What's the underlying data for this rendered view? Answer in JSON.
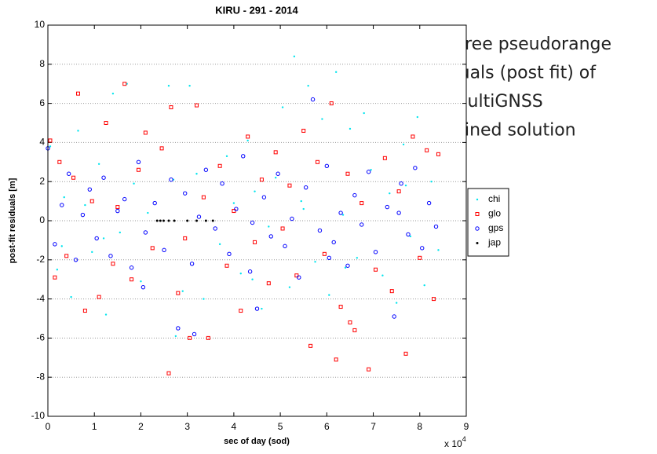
{
  "chart_data": {
    "type": "scatter",
    "title": "KIRU - 291 - 2014",
    "x_label": "sec of day (sod)",
    "y_label": "post-fit residuals [m]",
    "x_scale_label": "x 10",
    "x_scale_exponent": "4",
    "annotation": [
      "Ionofree pseudorange",
      "residuals (post fit) of",
      "the multiGNSS",
      "combined solution"
    ],
    "xlim": [
      0,
      90000
    ],
    "xticks": [
      0,
      {
        "value": 10000,
        "label": "1"
      },
      {
        "value": 20000,
        "label": "2"
      },
      {
        "value": 30000,
        "label": "3"
      },
      {
        "value": 40000,
        "label": "4"
      },
      {
        "value": 50000,
        "label": "5"
      },
      {
        "value": 60000,
        "label": "6"
      },
      {
        "value": 70000,
        "label": "7"
      },
      {
        "value": 80000,
        "label": "8"
      },
      {
        "value": 90000,
        "label": "9"
      }
    ],
    "ylim": [
      -10,
      10
    ],
    "yticks": [
      -10,
      -8,
      -6,
      -4,
      -2,
      0,
      2,
      4,
      6,
      8,
      10
    ],
    "grid": "y",
    "legend": "outside-right",
    "series": [
      {
        "name": "chi",
        "color": "#00e5ee",
        "marker": "point",
        "x": [
          500,
          2000,
          3500,
          5000,
          6500,
          8000,
          9500,
          11000,
          12500,
          14000,
          15500,
          17000,
          18500,
          20000,
          21500,
          26000,
          27500,
          29000,
          30500,
          32000,
          33500,
          37000,
          38500,
          40000,
          41500,
          43000,
          44500,
          46000,
          47500,
          49000,
          50500,
          52000,
          53000,
          54500,
          56000,
          57500,
          59000,
          60500,
          62000,
          63500,
          65000,
          66500,
          68000,
          69500,
          72000,
          73500,
          75000,
          76500,
          78000,
          79500,
          81000,
          82500,
          84000,
          3000,
          12000,
          27000,
          44000,
          55000,
          64000,
          77000
        ],
        "values": [
          3.8,
          -2.5,
          1.2,
          -3.9,
          4.6,
          0.8,
          -1.6,
          2.9,
          -4.8,
          6.5,
          -0.6,
          7.0,
          1.9,
          -3.1,
          0.4,
          6.9,
          -5.9,
          -3.6,
          6.9,
          2.4,
          -4.0,
          -1.2,
          3.3,
          0.9,
          -2.7,
          4.1,
          1.5,
          -4.5,
          -0.3,
          2.2,
          5.8,
          -3.4,
          8.4,
          1.0,
          6.9,
          -2.1,
          5.2,
          -3.8,
          7.6,
          0.3,
          4.7,
          -1.9,
          5.5,
          2.6,
          -2.8,
          1.4,
          -4.2,
          3.9,
          -0.8,
          5.3,
          -3.3,
          2.0,
          -1.5,
          -1.3,
          -0.9,
          2.1,
          -3.0,
          0.6,
          -2.4,
          1.8
        ]
      },
      {
        "name": "glo",
        "color": "#ff0000",
        "marker": "square",
        "x": [
          500,
          1500,
          2500,
          4000,
          5500,
          6500,
          8000,
          9500,
          11000,
          12500,
          14000,
          15000,
          16500,
          18000,
          19500,
          21000,
          22500,
          24500,
          26000,
          26500,
          28000,
          29500,
          30500,
          32000,
          33500,
          34500,
          37000,
          38500,
          40000,
          41500,
          43000,
          44500,
          46000,
          47500,
          49000,
          50500,
          52000,
          53500,
          55000,
          56500,
          58000,
          59500,
          61000,
          62000,
          63000,
          64500,
          66000,
          67500,
          69000,
          70500,
          72500,
          74000,
          75500,
          77000,
          78500,
          80000,
          81500,
          83000,
          84000,
          65000
        ],
        "values": [
          4.1,
          -2.9,
          3.0,
          -1.8,
          2.2,
          6.5,
          -4.6,
          1.0,
          -3.9,
          5.0,
          -2.2,
          0.7,
          7.0,
          -3.0,
          2.6,
          4.5,
          -1.4,
          3.7,
          -7.8,
          5.8,
          -3.7,
          -0.9,
          -6.0,
          5.9,
          1.2,
          -6.0,
          2.8,
          -2.3,
          0.5,
          -4.6,
          4.3,
          -1.1,
          2.1,
          -3.2,
          3.5,
          -0.4,
          1.8,
          -2.8,
          4.6,
          -6.4,
          3.0,
          -1.7,
          6.0,
          -7.1,
          -4.4,
          2.4,
          -5.6,
          0.9,
          -7.6,
          -2.5,
          3.2,
          -3.6,
          1.5,
          -6.8,
          4.3,
          -1.9,
          3.6,
          -4.0,
          3.4,
          -5.2
        ]
      },
      {
        "name": "gps",
        "color": "#0000ff",
        "marker": "circle",
        "x": [
          0,
          1500,
          3000,
          4500,
          6000,
          7500,
          9000,
          10500,
          12000,
          13500,
          15000,
          16500,
          18000,
          19500,
          21000,
          23000,
          25000,
          26500,
          28000,
          29500,
          31000,
          32500,
          34000,
          36000,
          37500,
          39000,
          40500,
          42000,
          43500,
          45000,
          46500,
          48000,
          49500,
          51000,
          52500,
          54000,
          55500,
          57000,
          58500,
          60000,
          61500,
          63000,
          64500,
          66000,
          67500,
          69000,
          70500,
          73000,
          74500,
          76000,
          77500,
          79000,
          80500,
          82000,
          83500,
          31500,
          44000,
          60500,
          75500,
          20500
        ],
        "values": [
          3.7,
          -1.2,
          0.8,
          2.4,
          -2.0,
          0.3,
          1.6,
          -0.9,
          2.2,
          -1.8,
          0.5,
          1.1,
          -2.4,
          3.0,
          -0.6,
          0.9,
          -1.5,
          2.1,
          -5.5,
          1.4,
          -2.2,
          0.2,
          2.6,
          -0.4,
          1.9,
          -1.7,
          0.6,
          3.3,
          -2.6,
          -4.5,
          1.2,
          -0.8,
          2.4,
          -1.3,
          0.1,
          -2.9,
          1.7,
          6.2,
          -0.5,
          2.8,
          -1.1,
          0.4,
          -2.3,
          1.3,
          -0.2,
          2.5,
          -1.6,
          0.7,
          -4.9,
          1.9,
          -0.7,
          2.7,
          -1.4,
          0.9,
          -0.3,
          -5.8,
          -0.1,
          -1.9,
          0.4,
          -3.4
        ]
      },
      {
        "name": "jap",
        "color": "#000000",
        "marker": "dot",
        "x": [
          23500,
          24200,
          24900,
          26000,
          27200,
          30000,
          32000,
          34000,
          35500
        ],
        "values": [
          0,
          0,
          0,
          0,
          0,
          0,
          0,
          0,
          0
        ]
      }
    ]
  }
}
